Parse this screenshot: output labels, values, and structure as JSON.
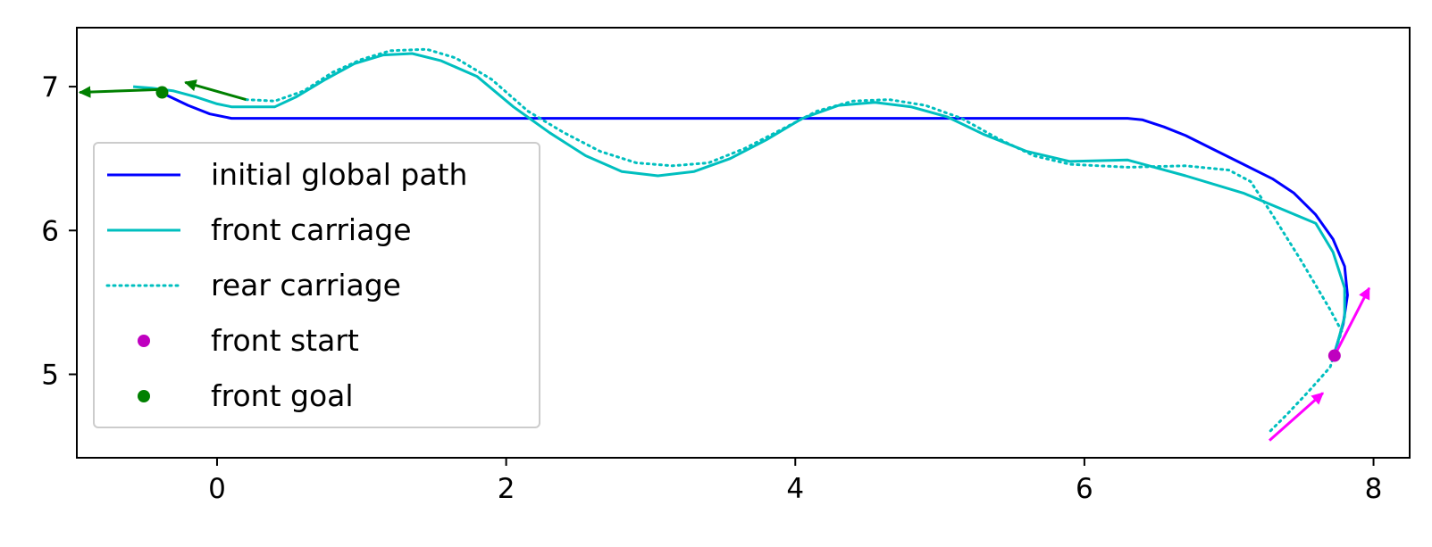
{
  "chart_data": {
    "type": "line",
    "title": "",
    "xlabel": "",
    "ylabel": "",
    "xlim": [
      -0.97,
      8.25
    ],
    "ylim": [
      4.42,
      7.41
    ],
    "xticks": [
      0,
      2,
      4,
      6,
      8
    ],
    "yticks": [
      5,
      6,
      7
    ],
    "xtick_labels": [
      "0",
      "2",
      "4",
      "6",
      "8"
    ],
    "ytick_labels": [
      "5",
      "6",
      "7"
    ],
    "grid": false,
    "legend_position": "center-left",
    "series": [
      {
        "name": "initial global path",
        "color": "#0000ff",
        "style": "solid",
        "points": [
          [
            -0.39,
            6.96
          ],
          [
            -0.2,
            6.87
          ],
          [
            -0.05,
            6.81
          ],
          [
            0.1,
            6.78
          ],
          [
            0.5,
            6.78
          ],
          [
            2,
            6.78
          ],
          [
            4,
            6.78
          ],
          [
            6.3,
            6.78
          ],
          [
            6.4,
            6.77
          ],
          [
            6.55,
            6.72
          ],
          [
            6.7,
            6.66
          ],
          [
            6.9,
            6.56
          ],
          [
            7.1,
            6.46
          ],
          [
            7.3,
            6.36
          ],
          [
            7.45,
            6.26
          ],
          [
            7.6,
            6.11
          ],
          [
            7.72,
            5.94
          ],
          [
            7.8,
            5.75
          ],
          [
            7.82,
            5.55
          ],
          [
            7.79,
            5.35
          ],
          [
            7.73,
            5.15
          ]
        ]
      },
      {
        "name": "front carriage",
        "color": "#00bfbf",
        "style": "solid",
        "points": [
          [
            -0.58,
            7
          ],
          [
            -0.45,
            6.99
          ],
          [
            -0.3,
            6.97
          ],
          [
            -0.15,
            6.93
          ],
          [
            0,
            6.88
          ],
          [
            0.1,
            6.86
          ],
          [
            0.4,
            6.86
          ],
          [
            0.55,
            6.93
          ],
          [
            0.75,
            7.05
          ],
          [
            0.95,
            7.16
          ],
          [
            1.15,
            7.22
          ],
          [
            1.35,
            7.23
          ],
          [
            1.55,
            7.18
          ],
          [
            1.8,
            7.07
          ],
          [
            2.05,
            6.86
          ],
          [
            2.3,
            6.68
          ],
          [
            2.55,
            6.52
          ],
          [
            2.8,
            6.41
          ],
          [
            3.05,
            6.38
          ],
          [
            3.3,
            6.41
          ],
          [
            3.55,
            6.5
          ],
          [
            3.8,
            6.63
          ],
          [
            4.05,
            6.78
          ],
          [
            4.3,
            6.87
          ],
          [
            4.55,
            6.89
          ],
          [
            4.8,
            6.86
          ],
          [
            5.05,
            6.79
          ],
          [
            5.3,
            6.67
          ],
          [
            5.6,
            6.55
          ],
          [
            5.9,
            6.48
          ],
          [
            6.3,
            6.49
          ],
          [
            6.7,
            6.38
          ],
          [
            7.1,
            6.26
          ],
          [
            7.6,
            6.05
          ],
          [
            7.72,
            5.85
          ],
          [
            7.8,
            5.6
          ],
          [
            7.8,
            5.4
          ],
          [
            7.73,
            5.14
          ]
        ]
      },
      {
        "name": "rear carriage",
        "color": "#00bfbf",
        "style": "dotted",
        "points": [
          [
            0.2,
            6.91
          ],
          [
            0.4,
            6.9
          ],
          [
            0.6,
            6.97
          ],
          [
            0.8,
            7.1
          ],
          [
            1,
            7.19
          ],
          [
            1.2,
            7.25
          ],
          [
            1.45,
            7.26
          ],
          [
            1.65,
            7.2
          ],
          [
            1.9,
            7.05
          ],
          [
            2.15,
            6.83
          ],
          [
            2.4,
            6.68
          ],
          [
            2.65,
            6.55
          ],
          [
            2.9,
            6.47
          ],
          [
            3.15,
            6.45
          ],
          [
            3.4,
            6.47
          ],
          [
            3.65,
            6.57
          ],
          [
            3.9,
            6.7
          ],
          [
            4.15,
            6.83
          ],
          [
            4.4,
            6.9
          ],
          [
            4.65,
            6.91
          ],
          [
            4.9,
            6.87
          ],
          [
            5.15,
            6.78
          ],
          [
            5.4,
            6.64
          ],
          [
            5.65,
            6.52
          ],
          [
            5.9,
            6.46
          ],
          [
            6.3,
            6.44
          ],
          [
            6.7,
            6.45
          ],
          [
            7,
            6.42
          ],
          [
            7.15,
            6.34
          ],
          [
            7.3,
            6.11
          ],
          [
            7.5,
            5.79
          ],
          [
            7.7,
            5.45
          ],
          [
            7.78,
            5.3
          ],
          [
            7.7,
            5.05
          ],
          [
            7.55,
            4.88
          ],
          [
            7.4,
            4.72
          ],
          [
            7.28,
            4.6
          ]
        ]
      }
    ],
    "markers": [
      {
        "name": "front start",
        "color": "#bf00bf",
        "x": 7.73,
        "y": 5.13
      },
      {
        "name": "front goal",
        "color": "#008000",
        "x": -0.38,
        "y": 6.96
      }
    ],
    "arrows": [
      {
        "color": "#ff00ff",
        "from": [
          7.73,
          5.13
        ],
        "to": [
          7.97,
          5.6
        ]
      },
      {
        "color": "#ff00ff",
        "from": [
          7.28,
          4.54
        ],
        "to": [
          7.65,
          4.87
        ]
      },
      {
        "color": "#008000",
        "from": [
          -0.4,
          6.98
        ],
        "to": [
          -0.95,
          6.96
        ]
      },
      {
        "color": "#008000",
        "from": [
          0.2,
          6.91
        ],
        "to": [
          -0.22,
          7.03
        ]
      }
    ]
  }
}
